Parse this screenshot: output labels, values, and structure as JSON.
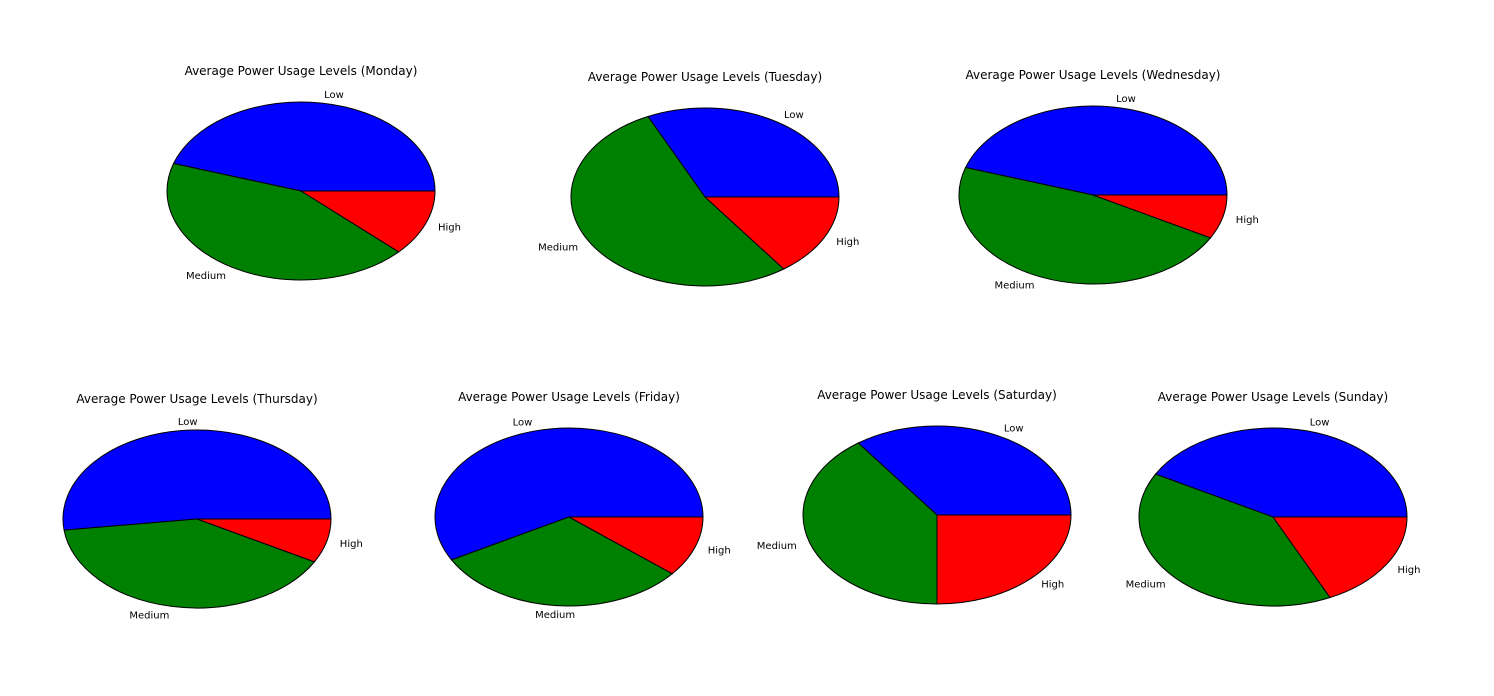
{
  "chart_data": [
    {
      "type": "pie",
      "title": "Average Power Usage Levels (Monday)",
      "labels": [
        "Low",
        "Medium",
        "High"
      ],
      "values": [
        45,
        43,
        12
      ],
      "colors": [
        "#0000ff",
        "#008000",
        "#ff0000"
      ],
      "startangle_deg": 0,
      "direction": "counterclockwise"
    },
    {
      "type": "pie",
      "title": "Average Power Usage Levels (Tuesday)",
      "labels": [
        "Low",
        "Medium",
        "High"
      ],
      "values": [
        32,
        53,
        15
      ],
      "colors": [
        "#0000ff",
        "#008000",
        "#ff0000"
      ],
      "startangle_deg": 0,
      "direction": "counterclockwise"
    },
    {
      "type": "pie",
      "title": "Average Power Usage Levels (Wednesday)",
      "labels": [
        "Low",
        "Medium",
        "High"
      ],
      "values": [
        45,
        47,
        8
      ],
      "colors": [
        "#0000ff",
        "#008000",
        "#ff0000"
      ],
      "startangle_deg": 0,
      "direction": "counterclockwise"
    },
    {
      "type": "pie",
      "title": "Average Power Usage Levels (Thursday)",
      "labels": [
        "Low",
        "Medium",
        "High"
      ],
      "values": [
        52,
        40,
        8
      ],
      "colors": [
        "#0000ff",
        "#008000",
        "#ff0000"
      ],
      "startangle_deg": 0,
      "direction": "counterclockwise"
    },
    {
      "type": "pie",
      "title": "Average Power Usage Levels (Friday)",
      "labels": [
        "Low",
        "Medium",
        "High"
      ],
      "values": [
        58,
        31,
        11
      ],
      "colors": [
        "#0000ff",
        "#008000",
        "#ff0000"
      ],
      "startangle_deg": 0,
      "direction": "counterclockwise"
    },
    {
      "type": "pie",
      "title": "Average Power Usage Levels (Saturday)",
      "labels": [
        "Low",
        "Medium",
        "High"
      ],
      "values": [
        35,
        40,
        25
      ],
      "colors": [
        "#0000ff",
        "#008000",
        "#ff0000"
      ],
      "startangle_deg": 0,
      "direction": "counterclockwise"
    },
    {
      "type": "pie",
      "title": "Average Power Usage Levels (Sunday)",
      "labels": [
        "Low",
        "Medium",
        "High"
      ],
      "values": [
        42,
        40,
        18
      ],
      "colors": [
        "#0000ff",
        "#008000",
        "#ff0000"
      ],
      "startangle_deg": 0,
      "direction": "counterclockwise"
    }
  ]
}
